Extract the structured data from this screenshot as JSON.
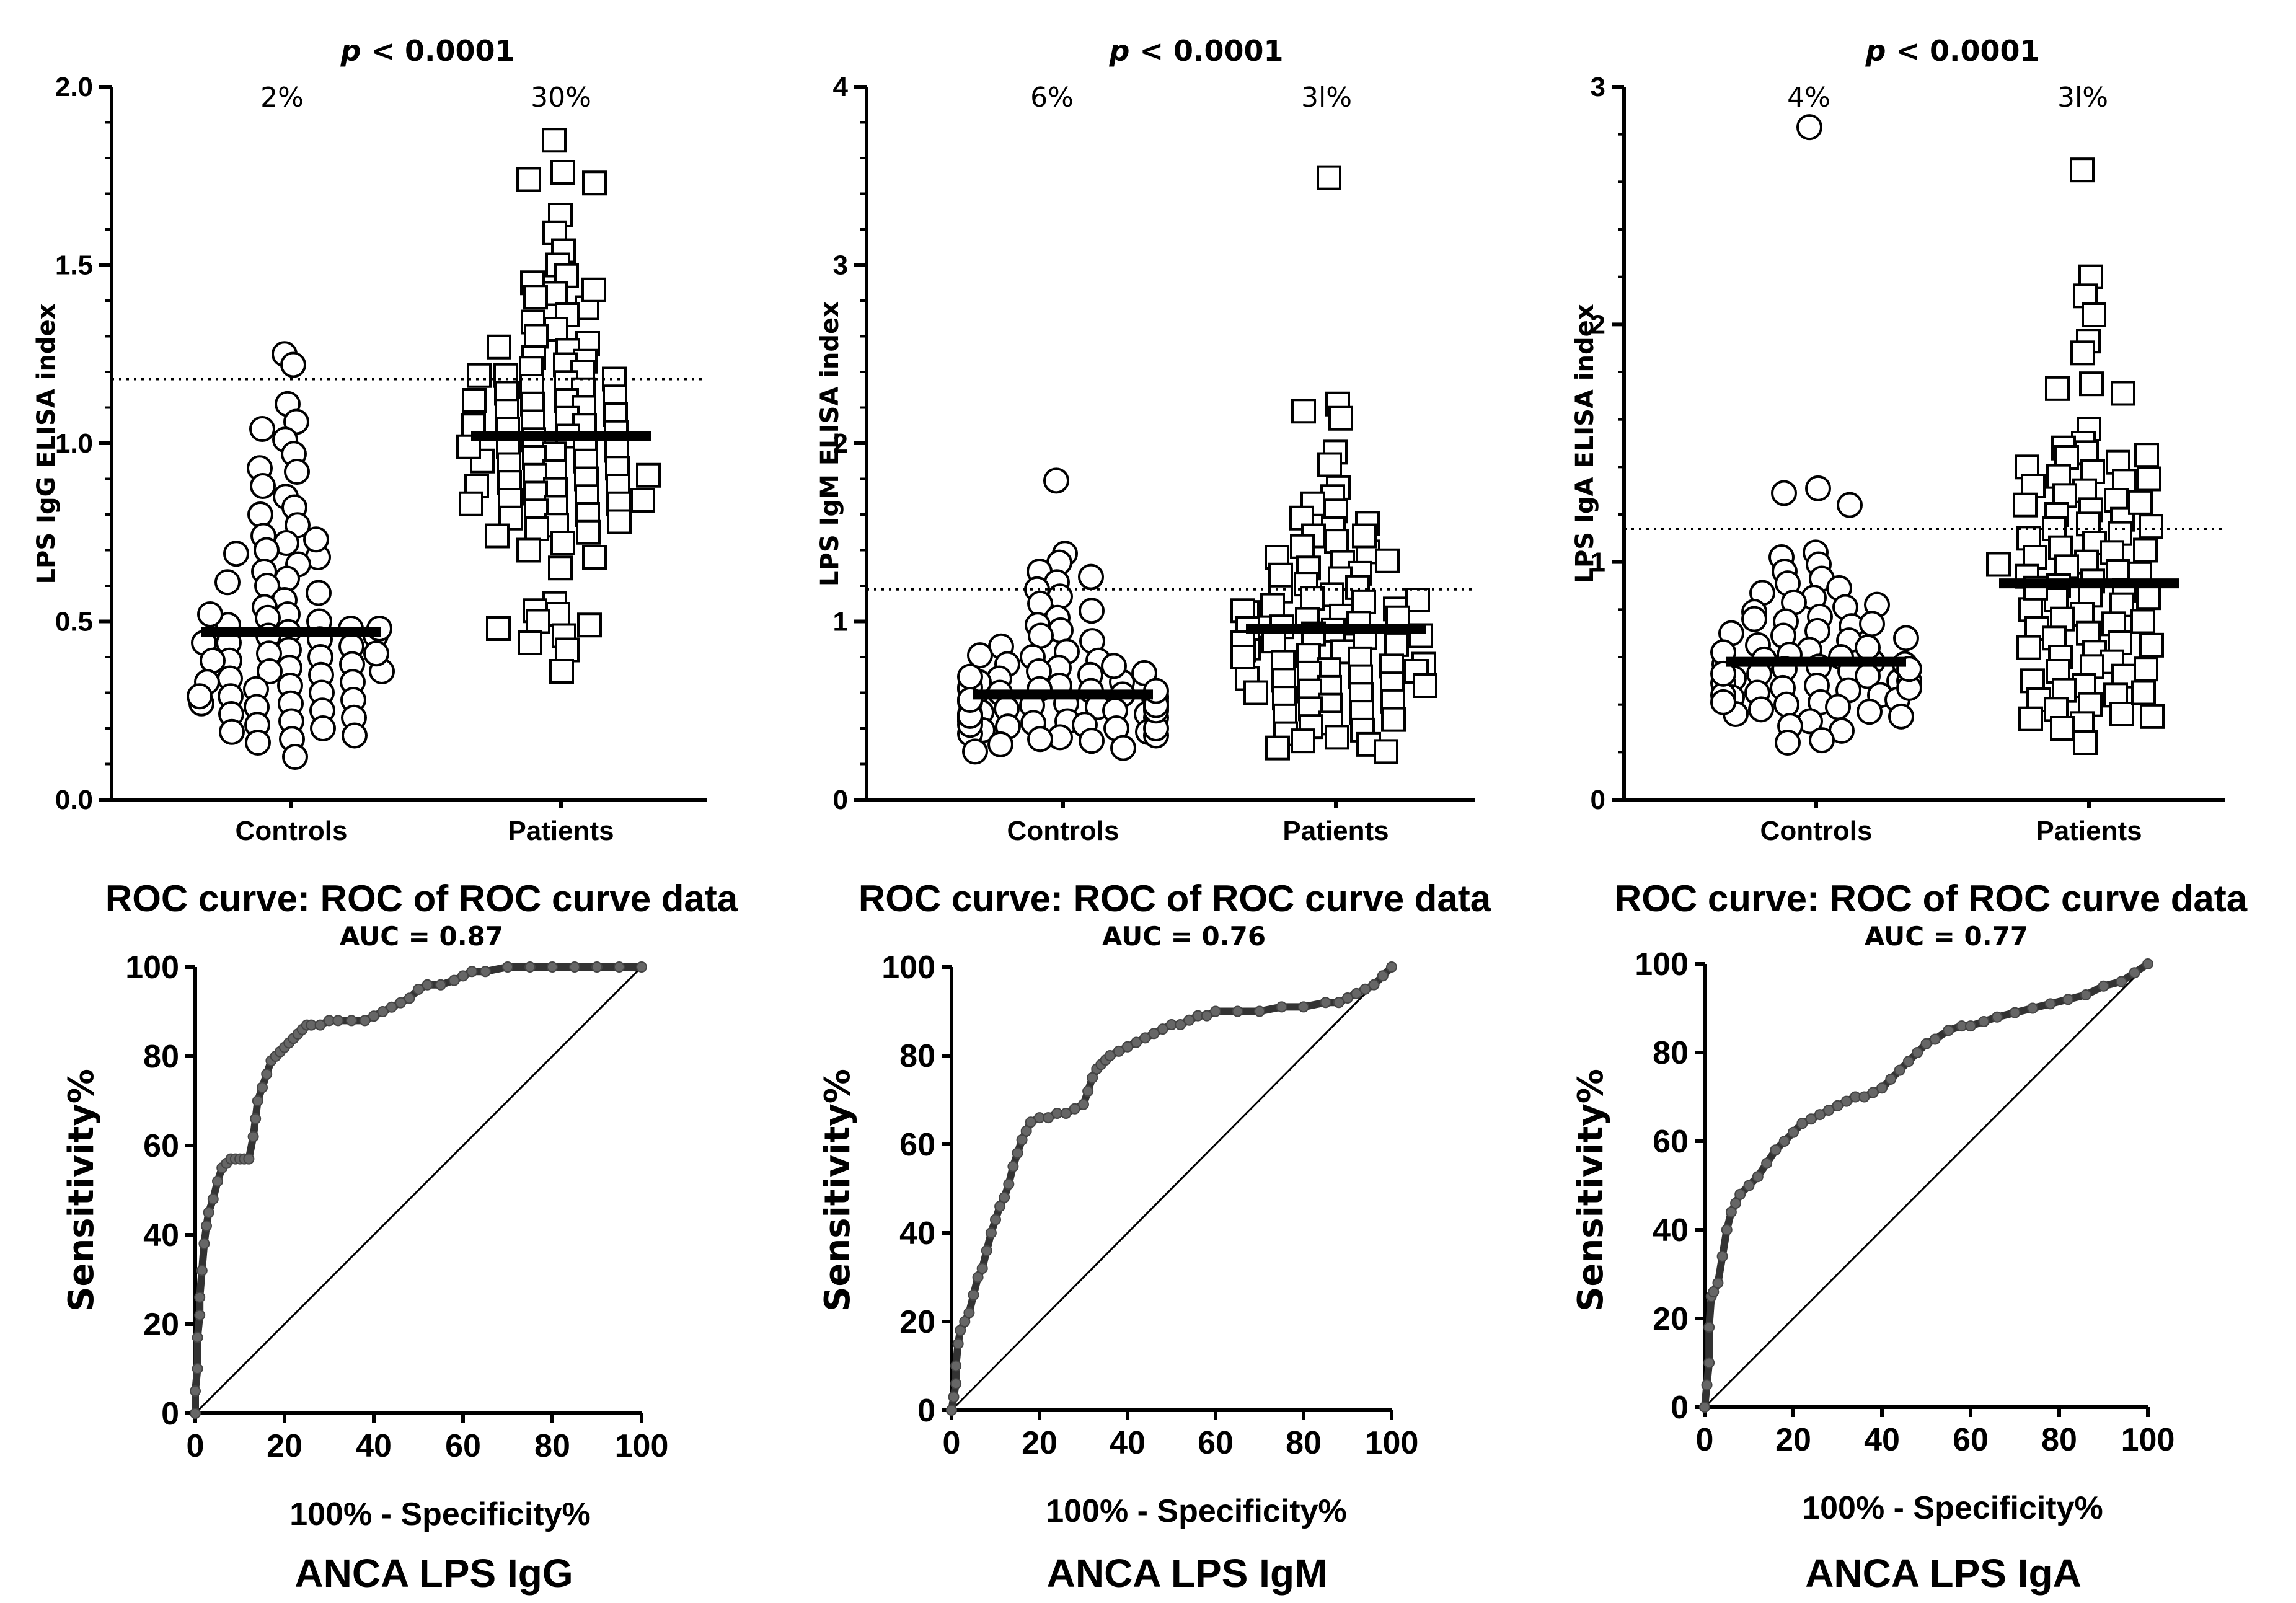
{
  "chart_data": [
    {
      "type": "scatter",
      "ylabel": "LPS IgG ELISA index",
      "categories": [
        "Controls",
        "Patients"
      ],
      "ylim": [
        0,
        2.0
      ],
      "yticks": [
        "0.0",
        "0.5",
        "1.0",
        "1.5",
        "2.0"
      ],
      "ytick_values": [
        0,
        0.5,
        1.0,
        1.5,
        2.0
      ],
      "p_label": "p",
      "p_value": "< 0.0001",
      "percent_labels": [
        "2%",
        "30%"
      ],
      "cutoff": 1.18,
      "medians": [
        0.47,
        1.02
      ],
      "groups": [
        {
          "name": "Controls",
          "marker": "circle",
          "values": [
            1.25,
            1.22,
            1.11,
            1.06,
            1.04,
            1.01,
            0.97,
            0.93,
            0.92,
            0.88,
            0.85,
            0.82,
            0.8,
            0.77,
            0.74,
            0.72,
            0.7,
            0.68,
            0.66,
            0.64,
            0.62,
            0.6,
            0.58,
            0.56,
            0.54,
            0.52,
            0.51,
            0.5,
            0.49,
            0.48,
            0.47,
            0.46,
            0.45,
            0.44,
            0.43,
            0.42,
            0.41,
            0.4,
            0.39,
            0.38,
            0.37,
            0.36,
            0.35,
            0.34,
            0.33,
            0.32,
            0.31,
            0.3,
            0.29,
            0.28,
            0.27,
            0.26,
            0.25,
            0.24,
            0.23,
            0.22,
            0.21,
            0.2,
            0.19,
            0.18,
            0.17,
            0.16,
            0.12,
            0.44,
            0.39,
            0.33,
            0.27,
            0.52,
            0.46,
            0.61,
            0.69,
            0.73,
            0.36,
            0.41,
            0.29,
            0.48
          ]
        },
        {
          "name": "Patients",
          "marker": "square",
          "values": [
            1.85,
            1.76,
            1.74,
            1.73,
            1.64,
            1.59,
            1.54,
            1.5,
            1.47,
            1.45,
            1.42,
            1.41,
            1.38,
            1.36,
            1.34,
            1.32,
            1.3,
            1.28,
            1.26,
            1.24,
            1.23,
            1.22,
            1.21,
            1.2,
            1.19,
            1.18,
            1.17,
            1.16,
            1.15,
            1.14,
            1.13,
            1.12,
            1.11,
            1.1,
            1.09,
            1.08,
            1.07,
            1.06,
            1.05,
            1.04,
            1.03,
            1.02,
            1.01,
            1.0,
            0.99,
            0.98,
            0.97,
            0.96,
            0.95,
            0.94,
            0.93,
            0.92,
            0.91,
            0.9,
            0.89,
            0.88,
            0.87,
            0.86,
            0.85,
            0.84,
            0.83,
            0.82,
            0.81,
            0.8,
            0.79,
            0.78,
            0.77,
            0.76,
            0.75,
            0.74,
            0.72,
            0.7,
            0.68,
            0.65,
            0.55,
            0.53,
            0.52,
            0.5,
            0.49,
            0.48,
            0.46,
            0.44,
            0.42,
            0.36,
            1.27,
            1.19,
            1.05,
            0.95,
            0.88,
            0.83,
            1.43,
            1.12,
            0.99,
            0.91,
            0.84
          ]
        }
      ]
    },
    {
      "type": "scatter",
      "ylabel": "LPS IgM ELISA index",
      "categories": [
        "Controls",
        "Patients"
      ],
      "ylim": [
        0,
        4
      ],
      "yticks": [
        "0",
        "1",
        "2",
        "3",
        "4"
      ],
      "ytick_values": [
        0,
        1,
        2,
        3,
        4
      ],
      "p_label": "p",
      "p_value": "< 0.0001",
      "percent_labels": [
        "6%",
        "3l%"
      ],
      "cutoff": 1.18,
      "medians": [
        0.59,
        0.96
      ],
      "groups": [
        {
          "name": "Controls",
          "marker": "circle",
          "values": [
            1.79,
            1.38,
            1.33,
            1.28,
            1.25,
            1.22,
            1.18,
            1.14,
            1.1,
            1.06,
            1.02,
            0.98,
            0.95,
            0.92,
            0.89,
            0.86,
            0.83,
            0.8,
            0.78,
            0.76,
            0.74,
            0.72,
            0.7,
            0.68,
            0.66,
            0.64,
            0.62,
            0.61,
            0.6,
            0.59,
            0.58,
            0.57,
            0.56,
            0.55,
            0.54,
            0.53,
            0.52,
            0.51,
            0.5,
            0.49,
            0.48,
            0.47,
            0.46,
            0.45,
            0.44,
            0.43,
            0.42,
            0.41,
            0.4,
            0.39,
            0.38,
            0.37,
            0.36,
            0.35,
            0.34,
            0.33,
            0.31,
            0.29,
            0.27,
            0.62,
            0.57,
            0.52,
            0.48,
            0.44,
            0.4,
            0.66,
            0.71,
            0.55,
            0.5,
            0.46,
            0.42,
            0.58,
            0.63,
            0.69,
            0.75,
            0.81,
            0.53,
            0.47,
            0.61,
            0.56
          ]
        },
        {
          "name": "Patients",
          "marker": "square",
          "values": [
            3.49,
            2.22,
            2.18,
            2.14,
            1.95,
            1.88,
            1.75,
            1.7,
            1.66,
            1.62,
            1.58,
            1.55,
            1.52,
            1.48,
            1.45,
            1.42,
            1.39,
            1.36,
            1.33,
            1.3,
            1.27,
            1.24,
            1.21,
            1.19,
            1.17,
            1.15,
            1.13,
            1.11,
            1.09,
            1.07,
            1.05,
            1.03,
            1.01,
            0.99,
            0.97,
            0.95,
            0.93,
            0.91,
            0.89,
            0.87,
            0.85,
            0.83,
            0.81,
            0.79,
            0.77,
            0.75,
            0.73,
            0.71,
            0.69,
            0.67,
            0.65,
            0.63,
            0.61,
            0.59,
            0.57,
            0.55,
            0.53,
            0.51,
            0.49,
            0.47,
            0.45,
            0.43,
            0.41,
            0.39,
            0.37,
            0.35,
            0.33,
            0.31,
            0.29,
            0.27,
            1.26,
            1.12,
            1.02,
            0.92,
            0.84,
            0.76,
            0.68,
            0.6,
            1.48,
            1.34,
            1.06,
            0.96,
            0.88,
            0.8,
            0.72,
            0.64
          ]
        }
      ]
    },
    {
      "type": "scatter",
      "ylabel": "LPS IgA ELISA index",
      "categories": [
        "Controls",
        "Patients"
      ],
      "ylim": [
        0,
        3
      ],
      "yticks": [
        "0",
        "1",
        "2",
        "3"
      ],
      "ytick_values": [
        0,
        1,
        2,
        3
      ],
      "p_label": "p",
      "p_value": "< 0.0001",
      "percent_labels": [
        "4%",
        "3l%"
      ],
      "cutoff": 1.14,
      "medians": [
        0.58,
        0.91
      ],
      "groups": [
        {
          "name": "Controls",
          "marker": "circle",
          "values": [
            2.83,
            1.31,
            1.29,
            1.24,
            1.04,
            1.02,
            0.99,
            0.96,
            0.93,
            0.91,
            0.89,
            0.87,
            0.85,
            0.83,
            0.81,
            0.79,
            0.77,
            0.75,
            0.73,
            0.71,
            0.69,
            0.67,
            0.65,
            0.63,
            0.61,
            0.6,
            0.59,
            0.58,
            0.57,
            0.56,
            0.55,
            0.54,
            0.53,
            0.52,
            0.51,
            0.5,
            0.49,
            0.48,
            0.47,
            0.46,
            0.45,
            0.44,
            0.43,
            0.42,
            0.41,
            0.4,
            0.39,
            0.38,
            0.37,
            0.36,
            0.35,
            0.33,
            0.31,
            0.29,
            0.25,
            0.24,
            0.64,
            0.57,
            0.5,
            0.44,
            0.7,
            0.76,
            0.82,
            0.62,
            0.53,
            0.47,
            0.41,
            0.68,
            0.74,
            0.55
          ]
        },
        {
          "name": "Patients",
          "marker": "square",
          "values": [
            2.65,
            2.2,
            2.12,
            2.04,
            1.93,
            1.88,
            1.75,
            1.73,
            1.71,
            1.56,
            1.5,
            1.48,
            1.46,
            1.44,
            1.42,
            1.4,
            1.38,
            1.36,
            1.34,
            1.32,
            1.3,
            1.28,
            1.26,
            1.24,
            1.22,
            1.2,
            1.18,
            1.16,
            1.14,
            1.12,
            1.1,
            1.08,
            1.06,
            1.04,
            1.02,
            1.0,
            0.98,
            0.96,
            0.94,
            0.92,
            0.9,
            0.88,
            0.86,
            0.84,
            0.82,
            0.8,
            0.78,
            0.76,
            0.74,
            0.72,
            0.7,
            0.68,
            0.66,
            0.64,
            0.62,
            0.6,
            0.58,
            0.56,
            0.54,
            0.52,
            0.5,
            0.48,
            0.46,
            0.44,
            0.42,
            0.4,
            0.38,
            0.36,
            0.34,
            0.32,
            0.3,
            0.24,
            1.15,
            1.05,
            0.95,
            0.85,
            0.75,
            0.65,
            0.55,
            1.25,
            1.35,
            0.45,
            0.35,
            1.45,
            0.99,
            0.89
          ]
        }
      ]
    },
    {
      "type": "line",
      "title": "ROC curve: ROC of ROC curve data",
      "auc": "AUC = 0.87",
      "xlabel": "100% - Specificity%",
      "ylabel": "Sensitivity%",
      "panel_label": "ANCA LPS IgG",
      "xlim": [
        0,
        100
      ],
      "ylim": [
        0,
        100
      ],
      "ticks": [
        "0",
        "20",
        "40",
        "60",
        "80",
        "100"
      ],
      "x": [
        0,
        0,
        0.5,
        0.5,
        1,
        1,
        1.5,
        2,
        2.5,
        3,
        4,
        5,
        6,
        7,
        8,
        9,
        10,
        11,
        12,
        13,
        13.5,
        14,
        15,
        16,
        17,
        18,
        19,
        20,
        21,
        22,
        23,
        24,
        25,
        26,
        28,
        30,
        32,
        35,
        38,
        40,
        42,
        44,
        46,
        48,
        50,
        52,
        55,
        58,
        60,
        62,
        65,
        70,
        75,
        80,
        85,
        90,
        95,
        100
      ],
      "y": [
        0,
        5,
        10,
        17,
        22,
        26,
        32,
        38,
        42,
        45,
        48,
        52,
        55,
        56,
        57,
        57,
        57,
        57,
        57,
        62,
        66,
        70,
        73,
        76,
        79,
        80,
        81,
        82,
        83,
        84,
        85,
        86,
        87,
        87,
        87,
        88,
        88,
        88,
        88,
        89,
        90,
        91,
        92,
        93,
        95,
        96,
        96,
        97,
        98,
        99,
        99,
        100,
        100,
        100,
        100,
        100,
        100,
        100
      ]
    },
    {
      "type": "line",
      "title": "ROC curve: ROC of ROC curve data",
      "auc": "AUC = 0.76",
      "xlabel": "100% - Specificity%",
      "ylabel": "Sensitivity%",
      "panel_label": "ANCA LPS IgM",
      "xlim": [
        0,
        100
      ],
      "ylim": [
        0,
        100
      ],
      "ticks": [
        "0",
        "20",
        "40",
        "60",
        "80",
        "100"
      ],
      "x": [
        0,
        0.5,
        1,
        1,
        1.5,
        2,
        3,
        4,
        5,
        6,
        7,
        8,
        9,
        10,
        11,
        12,
        13,
        14,
        15,
        16,
        17,
        18,
        20,
        22,
        24,
        26,
        28,
        30,
        31,
        32,
        33,
        34,
        35,
        36,
        38,
        40,
        42,
        44,
        46,
        48,
        50,
        52,
        54,
        56,
        58,
        60,
        65,
        70,
        75,
        80,
        85,
        88,
        90,
        92,
        94,
        96,
        98,
        100
      ],
      "y": [
        0,
        3,
        6,
        10,
        15,
        18,
        20,
        22,
        26,
        30,
        32,
        36,
        40,
        43,
        46,
        48,
        51,
        55,
        58,
        61,
        63,
        65,
        66,
        66,
        67,
        67,
        68,
        69,
        72,
        75,
        77,
        78,
        79,
        80,
        81,
        82,
        83,
        84,
        85,
        86,
        87,
        87,
        88,
        89,
        89,
        90,
        90,
        90,
        91,
        91,
        92,
        92,
        93,
        94,
        95,
        96,
        98,
        100
      ]
    },
    {
      "type": "line",
      "title": "ROC curve: ROC of ROC curve data",
      "auc": "AUC = 0.77",
      "xlabel": "100% - Specificity%",
      "ylabel": "Sensitivity%",
      "panel_label": "ANCA LPS IgA",
      "xlim": [
        0,
        100
      ],
      "ylim": [
        0,
        100
      ],
      "ticks": [
        "0",
        "20",
        "40",
        "60",
        "80",
        "100"
      ],
      "x": [
        0,
        0.5,
        1,
        1,
        1.5,
        2,
        3,
        4,
        5,
        6,
        7,
        8,
        10,
        12,
        14,
        16,
        18,
        20,
        22,
        24,
        26,
        28,
        30,
        32,
        34,
        36,
        38,
        40,
        42,
        44,
        46,
        48,
        50,
        52,
        55,
        58,
        60,
        63,
        66,
        70,
        74,
        78,
        82,
        86,
        90,
        94,
        97,
        100
      ],
      "y": [
        0,
        5,
        10,
        18,
        25,
        26,
        28,
        34,
        40,
        44,
        46,
        48,
        50,
        52,
        55,
        58,
        60,
        62,
        64,
        65,
        66,
        67,
        68,
        69,
        70,
        70,
        71,
        72,
        74,
        76,
        78,
        80,
        82,
        83,
        85,
        86,
        86,
        87,
        88,
        89,
        90,
        91,
        92,
        93,
        95,
        96,
        98,
        100
      ]
    }
  ]
}
